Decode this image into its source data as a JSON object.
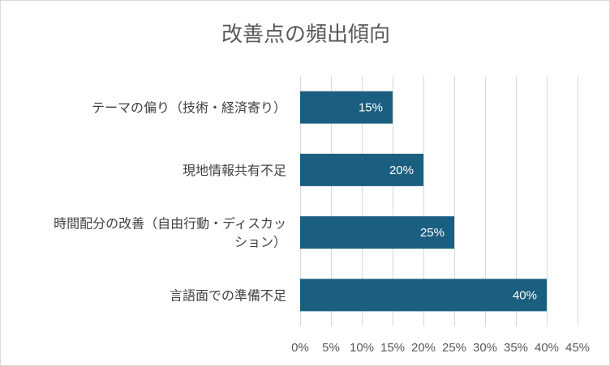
{
  "chart_data": {
    "type": "bar",
    "orientation": "horizontal",
    "title": "改善点の頻出傾向",
    "categories": [
      "テーマの偏り（技術・経済寄り）",
      "現地情報共有不足",
      "時間配分の改善（自由行動・ディスカッション）",
      "言語面での準備不足"
    ],
    "category_lines": [
      [
        "テーマの偏り（技術・経済寄り）"
      ],
      [
        "現地情報共有不足"
      ],
      [
        "時間配分の改善（自由行動・ディスカッ",
        "ション）"
      ],
      [
        "言語面での準備不足"
      ]
    ],
    "values": [
      15,
      20,
      25,
      40
    ],
    "data_labels": [
      "15%",
      "20%",
      "25%",
      "40%"
    ],
    "xlim": [
      0,
      45
    ],
    "x_ticks": [
      0,
      5,
      10,
      15,
      20,
      25,
      30,
      35,
      40,
      45
    ],
    "x_tick_labels": [
      "0%",
      "5%",
      "10%",
      "15%",
      "20%",
      "25%",
      "30%",
      "35%",
      "40%",
      "45%"
    ],
    "grid": true,
    "legend": "none",
    "bar_color": "#1b5f80",
    "grid_color": "#d9d9d9"
  }
}
